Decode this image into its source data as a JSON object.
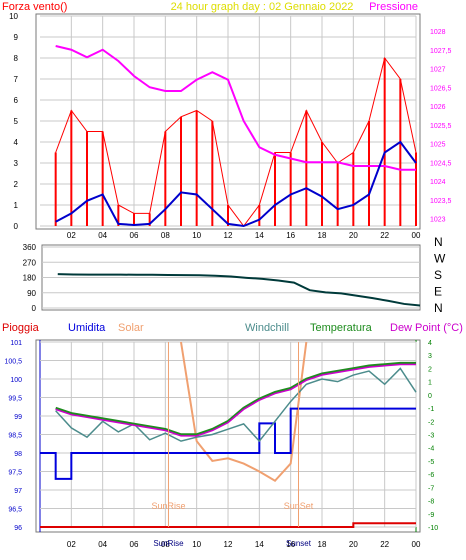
{
  "colors": {
    "background": "#ffffff",
    "frame": "#7a7a7a",
    "grid": "#c8c8c8",
    "wind_speed": "#ff0000",
    "wind_avg": "#0000cc",
    "pressure": "#ff00ff",
    "direction": "#003a3a",
    "rain": "#dd0000",
    "humidity": "#0000dd",
    "solar": "#f0a070",
    "windchill": "#4c8c8c",
    "temperature": "#1e8c1e",
    "dew_point": "#cc00cc",
    "title": "#dddd00",
    "axis_left_blue": "#0000cc",
    "axis_green": "#008000"
  },
  "chart_data": [
    {
      "id": "wind_pressure",
      "type": "line",
      "title": "24 hour graph day : 02 Gennaio 2022",
      "left_label": "Forza vento()",
      "right_label": "Pressione",
      "x_tick_labels": [
        "02",
        "04",
        "06",
        "08",
        "10",
        "12",
        "14",
        "16",
        "18",
        "20",
        "22",
        "00"
      ],
      "x": [
        1,
        2,
        3,
        4,
        5,
        6,
        7,
        8,
        9,
        10,
        11,
        12,
        13,
        14,
        15,
        16,
        17,
        18,
        19,
        20,
        21,
        22,
        23,
        24
      ],
      "ylim_left": [
        0,
        10
      ],
      "yticks_left": [
        "0",
        "1",
        "2",
        "3",
        "4",
        "5",
        "6",
        "7",
        "8",
        "9",
        "10"
      ],
      "ylim_right": [
        1022.8,
        1028.4
      ],
      "yticks_right": [
        "1023",
        "1023,5",
        "1024",
        "1024,5",
        "1025",
        "1025,5",
        "1026",
        "1026,5",
        "1027",
        "1027,5",
        "1028"
      ],
      "series": [
        {
          "id": "wind_speed",
          "axis": "left",
          "values": [
            3.5,
            5.5,
            4.5,
            4.5,
            1.0,
            0.6,
            0.6,
            4.5,
            5.2,
            5.5,
            5.0,
            1.0,
            0,
            1.0,
            3.5,
            3.5,
            5.5,
            4.0,
            3.0,
            3.5,
            5.0,
            8.0,
            7.0,
            3.5
          ]
        },
        {
          "id": "wind_avg",
          "axis": "left",
          "values": [
            0.2,
            0.6,
            1.2,
            1.5,
            0.1,
            0.05,
            0.1,
            0.8,
            1.6,
            1.5,
            0.8,
            0.1,
            0,
            0.3,
            1.0,
            1.5,
            1.8,
            1.4,
            0.8,
            1.0,
            1.5,
            3.5,
            4.0,
            3.0
          ]
        },
        {
          "id": "pressure",
          "axis": "right",
          "values": [
            1027.6,
            1027.5,
            1027.3,
            1027.5,
            1027.2,
            1026.8,
            1026.5,
            1026.4,
            1026.4,
            1026.7,
            1026.9,
            1026.7,
            1025.6,
            1024.9,
            1024.7,
            1024.6,
            1024.5,
            1024.5,
            1024.5,
            1024.4,
            1024.4,
            1024.4,
            1024.3,
            1024.3
          ]
        }
      ]
    },
    {
      "id": "wind_direction",
      "type": "line",
      "y_tick_labels": [
        "0",
        "90",
        "180",
        "270",
        "360"
      ],
      "ylim": [
        0,
        360
      ],
      "direction_labels": [
        "N",
        "W",
        "S",
        "E",
        "N"
      ],
      "x": [
        1,
        2,
        3,
        4,
        5,
        6,
        7,
        8,
        9,
        10,
        11,
        12,
        13,
        14,
        15,
        16,
        17,
        18,
        19,
        20,
        21,
        22,
        23,
        24
      ],
      "series": [
        {
          "id": "direction",
          "values": [
            200,
            198,
            197,
            197,
            197,
            196,
            196,
            195,
            194,
            193,
            190,
            186,
            178,
            172,
            162,
            150,
            105,
            92,
            86,
            72,
            58,
            42,
            24,
            15
          ]
        }
      ]
    },
    {
      "id": "weather",
      "type": "line",
      "legend": [
        "Pioggia",
        "Umidita",
        "Solar",
        "Windchill",
        "Temperatura",
        "Dew Point (°C)"
      ],
      "x_tick_labels": [
        "02",
        "04",
        "06",
        "08",
        "10",
        "12",
        "14",
        "16",
        "18",
        "20",
        "22",
        "00"
      ],
      "annotations": [
        "SunRise",
        "SunSet"
      ],
      "bottom_labels": [
        "SunRise",
        "Sunset"
      ],
      "x": [
        1,
        2,
        3,
        4,
        5,
        6,
        7,
        8,
        9,
        10,
        11,
        12,
        13,
        14,
        15,
        16,
        17,
        18,
        19,
        20,
        21,
        22,
        23,
        24
      ],
      "ylim_left": [
        96,
        101
      ],
      "yticks_left": [
        "96",
        "96,5",
        "97",
        "97,5",
        "98",
        "98,5",
        "99",
        "99,5",
        "100",
        "100,5",
        "101"
      ],
      "ylim_right": [
        -10,
        4
      ],
      "yticks_right": [
        "-10",
        "-9",
        "-8",
        "-7",
        "-6",
        "-5",
        "-4",
        "-3",
        "-2",
        "-1",
        "0",
        "1",
        "2",
        "3",
        "4"
      ],
      "series": [
        {
          "id": "temperature",
          "axis": "right",
          "values": [
            -1.0,
            -1.4,
            -1.6,
            -1.8,
            -2.0,
            -2.2,
            -2.4,
            -2.6,
            -3.0,
            -3.0,
            -2.6,
            -2.0,
            -1.0,
            -0.3,
            0.2,
            0.5,
            1.2,
            1.6,
            1.8,
            2.0,
            2.2,
            2.3,
            2.4,
            2.4
          ]
        },
        {
          "id": "dew_point",
          "axis": "right",
          "values": [
            -1.1,
            -1.5,
            -1.7,
            -1.9,
            -2.1,
            -2.3,
            -2.5,
            -2.7,
            -3.1,
            -3.1,
            -2.7,
            -2.1,
            -1.1,
            -0.4,
            0.1,
            0.4,
            1.1,
            1.5,
            1.7,
            1.9,
            2.1,
            2.2,
            2.3,
            2.3
          ]
        },
        {
          "id": "windchill",
          "axis": "right",
          "values": [
            -1.2,
            -2.5,
            -3.2,
            -2.0,
            -2.8,
            -2.2,
            -3.4,
            -2.9,
            -3.5,
            -3.2,
            -3.0,
            -2.6,
            -2.2,
            -3.5,
            -2.0,
            -0.5,
            0.8,
            1.2,
            1.0,
            1.5,
            1.8,
            0.8,
            2.0,
            0.2
          ]
        },
        {
          "id": "solar",
          "axis": "right",
          "values": [
            null,
            null,
            null,
            null,
            null,
            null,
            null,
            null,
            4.0,
            -3.5,
            -5.0,
            -4.8,
            -5.2,
            -5.8,
            -6.5,
            -5.2,
            4.0,
            null,
            null,
            null,
            null,
            null,
            null,
            null
          ]
        },
        {
          "id": "humidity",
          "axis": "left",
          "values": [
            98,
            97.3,
            98,
            98,
            98,
            98,
            98,
            98,
            98,
            98,
            98,
            98,
            98,
            98,
            98.8,
            98,
            99.2,
            99.2,
            99.2,
            99.2,
            99.2,
            99.2,
            99.2,
            99.2
          ]
        },
        {
          "id": "rain",
          "axis": "left",
          "values": [
            96,
            96,
            96,
            96,
            96,
            96,
            96,
            96,
            96,
            96,
            96,
            96,
            96,
            96,
            96,
            96,
            96,
            96,
            96,
            96,
            96.1,
            96.1,
            96.1,
            96.1
          ]
        }
      ]
    }
  ]
}
